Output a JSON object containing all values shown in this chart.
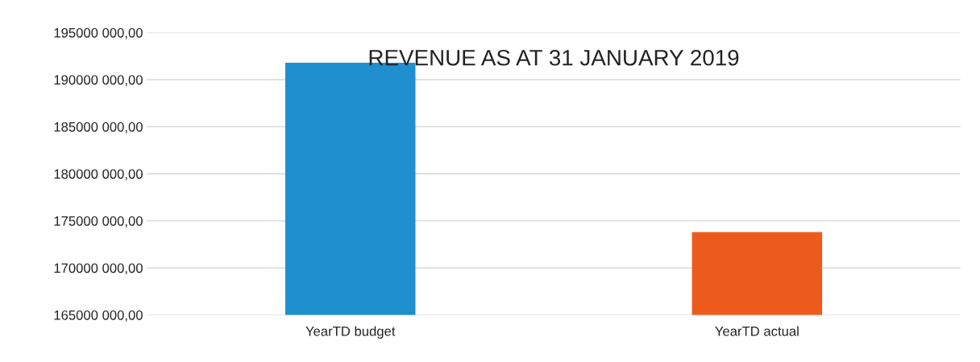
{
  "chart_data": {
    "type": "bar",
    "title": "REVENUE AS AT 31 JANUARY 2019",
    "categories": [
      "YearTD budget",
      "YearTD actual"
    ],
    "values": [
      191800000,
      173800000
    ],
    "colors": [
      "#1f8fd0",
      "#ec5a1c"
    ],
    "ylim": [
      165000000,
      195000000
    ],
    "yticks": [
      {
        "value": 165000000,
        "label": "165000 000,00"
      },
      {
        "value": 170000000,
        "label": "170000 000,00"
      },
      {
        "value": 175000000,
        "label": "175000 000,00"
      },
      {
        "value": 180000000,
        "label": "180000 000,00"
      },
      {
        "value": 185000000,
        "label": "185000 000,00"
      },
      {
        "value": 190000000,
        "label": "190000 000,00"
      },
      {
        "value": 195000000,
        "label": "195000 000,00"
      }
    ],
    "grid": "y",
    "legend": false
  }
}
